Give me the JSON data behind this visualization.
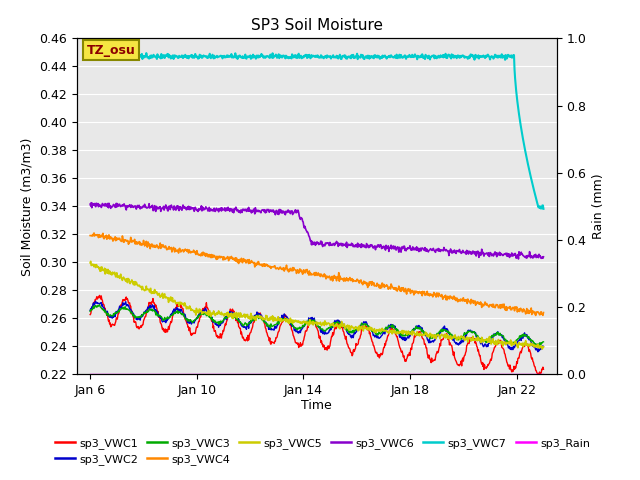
{
  "title": "SP3 Soil Moisture",
  "ylabel_left": "Soil Moisture (m3/m3)",
  "ylabel_right": "Rain (mm)",
  "xlabel": "Time",
  "xlim_days": [
    5.5,
    23.5
  ],
  "ylim_left": [
    0.22,
    0.46
  ],
  "ylim_right": [
    0.0,
    1.0
  ],
  "xtick_labels": [
    "Jan 6",
    "Jan 10",
    "Jan 14",
    "Jan 18",
    "Jan 22"
  ],
  "xtick_positions": [
    6,
    10,
    14,
    18,
    22
  ],
  "ytick_left": [
    0.22,
    0.24,
    0.26,
    0.28,
    0.3,
    0.32,
    0.34,
    0.36,
    0.38,
    0.4,
    0.42,
    0.44,
    0.46
  ],
  "ytick_right": [
    0.0,
    0.2,
    0.4,
    0.6,
    0.8,
    1.0
  ],
  "background_color": "#e8e8e8",
  "label_box_color": "#f5e642",
  "label_box_text": "TZ_osu",
  "label_box_text_color": "#8b0000",
  "series": {
    "sp3_VWC1": {
      "color": "#ff0000",
      "lw": 1.0
    },
    "sp3_VWC2": {
      "color": "#0000cc",
      "lw": 1.0
    },
    "sp3_VWC3": {
      "color": "#00aa00",
      "lw": 1.0
    },
    "sp3_VWC4": {
      "color": "#ff8800",
      "lw": 1.2
    },
    "sp3_VWC5": {
      "color": "#cccc00",
      "lw": 1.2
    },
    "sp3_VWC6": {
      "color": "#8800cc",
      "lw": 1.2
    },
    "sp3_VWC7": {
      "color": "#00cccc",
      "lw": 1.5
    },
    "sp3_Rain": {
      "color": "#ff00ff",
      "lw": 1.0
    }
  },
  "legend_row1": [
    "sp3_VWC1",
    "sp3_VWC2",
    "sp3_VWC3",
    "sp3_VWC4",
    "sp3_VWC5",
    "sp3_VWC6"
  ],
  "legend_row2": [
    "sp3_VWC7",
    "sp3_Rain"
  ]
}
